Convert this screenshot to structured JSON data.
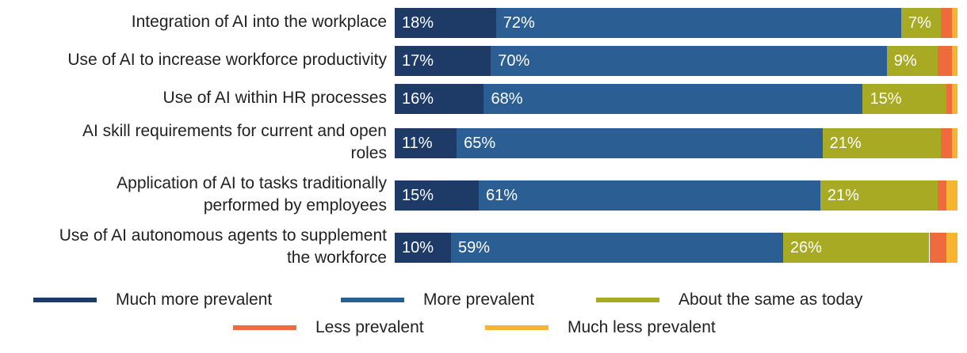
{
  "chart_data": {
    "type": "bar",
    "orientation": "horizontal",
    "stacked": true,
    "title": "",
    "xlabel": "",
    "ylabel": "",
    "xlim": [
      0,
      100
    ],
    "categories": [
      "Integration of AI into the workplace",
      "Use of AI to increase workforce productivity",
      "Use of AI within HR processes",
      "AI skill requirements for current and open roles",
      "Application of AI to tasks traditionally performed by employees",
      "Use of AI autonomous agents to supplement the workforce"
    ],
    "series": [
      {
        "name": "Much more prevalent",
        "color": "#1e3b68",
        "values": [
          18,
          17,
          16,
          11,
          15,
          10
        ],
        "labels": [
          "18%",
          "17%",
          "16%",
          "11%",
          "15%",
          "10%"
        ]
      },
      {
        "name": "More prevalent",
        "color": "#2b5f94",
        "values": [
          72,
          70,
          68,
          65,
          61,
          59
        ],
        "labels": [
          "72%",
          "70%",
          "68%",
          "65%",
          "61%",
          "59%"
        ]
      },
      {
        "name": "About the same as today",
        "color": "#a8aa24",
        "values": [
          7,
          9,
          15,
          21,
          21,
          26
        ],
        "labels": [
          "7%",
          "9%",
          "15%",
          "21%",
          "21%",
          "26%"
        ]
      },
      {
        "name": "Less prevalent",
        "color": "#ef6b3e",
        "values": [
          2,
          2.5,
          1,
          2,
          1.5,
          3
        ],
        "labels": [
          "",
          "",
          "",
          "",
          "",
          ""
        ]
      },
      {
        "name": "Much less prevalent",
        "color": "#f7b431",
        "values": [
          1,
          1,
          1,
          1,
          2,
          2
        ],
        "labels": [
          "",
          "",
          "",
          "",
          "",
          ""
        ]
      }
    ],
    "legend_position": "bottom"
  }
}
